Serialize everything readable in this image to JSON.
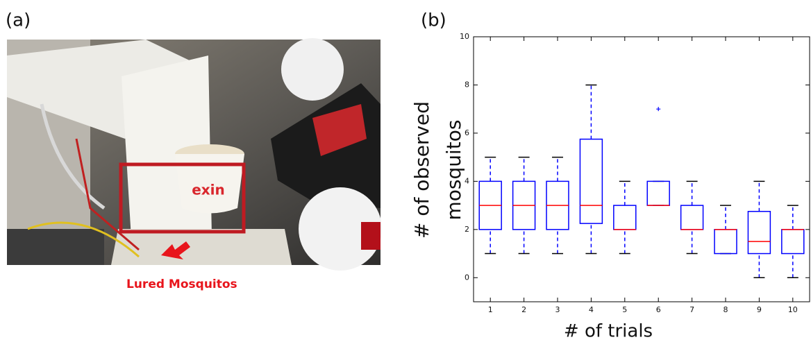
{
  "panel_labels": [
    "(a)",
    "(b)"
  ],
  "photo": {
    "annotation": "Lured Mosquitos"
  },
  "chart_data": {
    "type": "box",
    "xlabel": "# of trials",
    "ylabel_lines": [
      "# of observed",
      "mosquitos"
    ],
    "categories": [
      "1",
      "2",
      "3",
      "4",
      "5",
      "6",
      "7",
      "8",
      "9",
      "10"
    ],
    "boxes": [
      {
        "whisker_low": 1,
        "q1": 2,
        "median": 3,
        "q3": 4,
        "whisker_high": 5
      },
      {
        "whisker_low": 1,
        "q1": 2,
        "median": 3,
        "q3": 4,
        "whisker_high": 5
      },
      {
        "whisker_low": 1,
        "q1": 2,
        "median": 3,
        "q3": 4,
        "whisker_high": 5
      },
      {
        "whisker_low": 1,
        "q1": 2.25,
        "median": 3,
        "q3": 5.75,
        "whisker_high": 8
      },
      {
        "whisker_low": 1,
        "q1": 2,
        "median": 2,
        "q3": 3,
        "whisker_high": 4
      },
      {
        "whisker_low": 3,
        "q1": 3,
        "median": 3,
        "q3": 4,
        "whisker_high": 4
      },
      {
        "whisker_low": 1,
        "q1": 2,
        "median": 2,
        "q3": 3,
        "whisker_high": 4
      },
      {
        "whisker_low": 1,
        "q1": 1,
        "median": 2,
        "q3": 2,
        "whisker_high": 3
      },
      {
        "whisker_low": 0,
        "q1": 1,
        "median": 1.5,
        "q3": 2.75,
        "whisker_high": 4
      },
      {
        "whisker_low": 0,
        "q1": 1,
        "median": 2,
        "q3": 2,
        "whisker_high": 3
      }
    ],
    "outliers": [
      [],
      [],
      [],
      [],
      [],
      [
        7
      ],
      [],
      [],
      [],
      []
    ],
    "box_color": "#0000ff",
    "median_color": "#ff0000",
    "cap_color": "#000000",
    "xlim": [
      0.5,
      10.5
    ],
    "ylim": [
      -1,
      10
    ],
    "yticks": [
      0,
      2,
      4,
      6,
      8,
      10
    ]
  }
}
